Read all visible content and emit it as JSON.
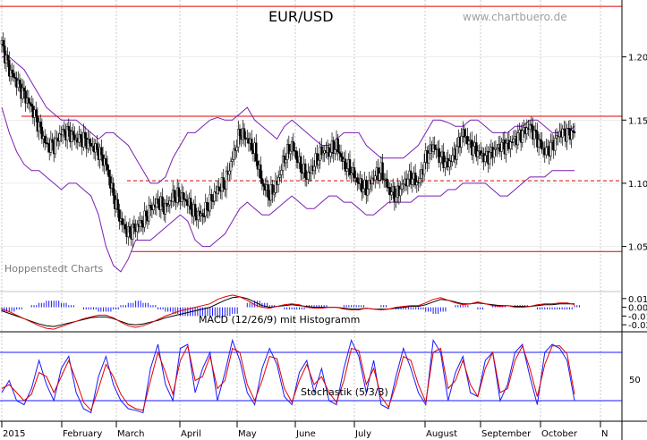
{
  "title": "EUR/USD",
  "source": "www.chartbuero.de",
  "watermark": "Hoppenstedt Charts",
  "colors": {
    "background": "#ffffff",
    "grid": "#bdbdbd",
    "candle": "#000000",
    "bollinger": "#7a1fb0",
    "level_line": "#e00000",
    "macd_line": "#000000",
    "macd_signal": "#e00000",
    "histogram": "#1a1aff",
    "stoch_k": "#1a1aff",
    "stoch_d": "#e00000",
    "stoch_band": "#1a1aff"
  },
  "chart_data": [
    {
      "type": "candlestick",
      "title": "EUR/USD",
      "y_ticks": [
        "1.20",
        "1.15",
        "1.10",
        "1.05"
      ],
      "ylim": [
        1.02,
        1.245
      ],
      "x_labels": [
        "2015",
        "February",
        "March",
        "April",
        "May",
        "June",
        "July",
        "August",
        "September",
        "October",
        "N"
      ],
      "horizontal_lines": [
        {
          "value": 1.24,
          "style": "solid"
        },
        {
          "value": 1.153,
          "style": "solid"
        },
        {
          "value": 1.102,
          "style": "dashed"
        },
        {
          "value": 1.046,
          "style": "solid"
        }
      ],
      "close_series": [
        1.21,
        1.19,
        1.18,
        1.17,
        1.16,
        1.145,
        1.13,
        1.13,
        1.14,
        1.14,
        1.135,
        1.135,
        1.13,
        1.125,
        1.115,
        1.09,
        1.07,
        1.06,
        1.065,
        1.07,
        1.08,
        1.085,
        1.08,
        1.09,
        1.09,
        1.085,
        1.075,
        1.075,
        1.085,
        1.095,
        1.1,
        1.12,
        1.14,
        1.135,
        1.125,
        1.1,
        1.09,
        1.1,
        1.12,
        1.13,
        1.115,
        1.105,
        1.115,
        1.125,
        1.125,
        1.13,
        1.115,
        1.11,
        1.1,
        1.095,
        1.105,
        1.11,
        1.095,
        1.09,
        1.1,
        1.105,
        1.1,
        1.12,
        1.13,
        1.12,
        1.115,
        1.125,
        1.14,
        1.13,
        1.125,
        1.12,
        1.125,
        1.13,
        1.13,
        1.135,
        1.14,
        1.145,
        1.135,
        1.125,
        1.13,
        1.14,
        1.14,
        1.14
      ],
      "series": [
        {
          "name": "upper_band",
          "values": [
            1.2,
            1.2,
            1.195,
            1.19,
            1.18,
            1.17,
            1.16,
            1.155,
            1.15,
            1.15,
            1.15,
            1.145,
            1.14,
            1.135,
            1.14,
            1.14,
            1.135,
            1.13,
            1.12,
            1.11,
            1.1,
            1.1,
            1.105,
            1.12,
            1.13,
            1.14,
            1.14,
            1.145,
            1.15,
            1.152,
            1.15,
            1.15,
            1.155,
            1.16,
            1.15,
            1.145,
            1.14,
            1.135,
            1.145,
            1.15,
            1.145,
            1.14,
            1.135,
            1.13,
            1.13,
            1.135,
            1.14,
            1.14,
            1.14,
            1.13,
            1.125,
            1.12,
            1.12,
            1.12,
            1.12,
            1.125,
            1.13,
            1.14,
            1.15,
            1.15,
            1.148,
            1.145,
            1.145,
            1.15,
            1.15,
            1.145,
            1.14,
            1.14,
            1.14,
            1.145,
            1.145,
            1.15,
            1.15,
            1.145,
            1.14,
            1.14,
            1.14,
            1.145
          ]
        },
        {
          "name": "lower_band",
          "values": [
            1.16,
            1.14,
            1.125,
            1.115,
            1.11,
            1.11,
            1.105,
            1.1,
            1.095,
            1.1,
            1.1,
            1.095,
            1.09,
            1.075,
            1.05,
            1.035,
            1.03,
            1.04,
            1.055,
            1.055,
            1.055,
            1.06,
            1.065,
            1.07,
            1.075,
            1.07,
            1.055,
            1.05,
            1.05,
            1.055,
            1.06,
            1.07,
            1.08,
            1.085,
            1.08,
            1.075,
            1.075,
            1.08,
            1.085,
            1.09,
            1.085,
            1.08,
            1.08,
            1.085,
            1.09,
            1.09,
            1.085,
            1.085,
            1.08,
            1.075,
            1.075,
            1.08,
            1.085,
            1.085,
            1.085,
            1.085,
            1.09,
            1.09,
            1.09,
            1.09,
            1.095,
            1.095,
            1.1,
            1.1,
            1.1,
            1.1,
            1.095,
            1.09,
            1.09,
            1.095,
            1.1,
            1.105,
            1.105,
            1.105,
            1.11,
            1.11,
            1.11,
            1.11
          ]
        }
      ]
    },
    {
      "type": "line",
      "title": "MACD (12/26/9) mit Histogramm",
      "y_ticks": [
        "0.01",
        "0.00",
        "-0.01",
        "-0.02"
      ],
      "ylim": [
        -0.028,
        0.018
      ],
      "series": [
        {
          "name": "macd",
          "values": [
            -0.004,
            -0.007,
            -0.01,
            -0.013,
            -0.016,
            -0.019,
            -0.021,
            -0.022,
            -0.02,
            -0.018,
            -0.016,
            -0.014,
            -0.012,
            -0.011,
            -0.011,
            -0.013,
            -0.016,
            -0.019,
            -0.02,
            -0.019,
            -0.017,
            -0.015,
            -0.012,
            -0.01,
            -0.008,
            -0.006,
            -0.004,
            -0.002,
            0.0,
            0.004,
            0.008,
            0.011,
            0.012,
            0.01,
            0.006,
            0.002,
            0.0,
            0.001,
            0.002,
            0.003,
            0.002,
            0.001,
            0.0,
            0.0,
            0.0,
            0.0,
            -0.001,
            -0.002,
            -0.002,
            -0.001,
            -0.002,
            -0.002,
            -0.002,
            -0.001,
            0.0,
            0.001,
            0.001,
            0.003,
            0.006,
            0.009,
            0.008,
            0.006,
            0.004,
            0.004,
            0.005,
            0.004,
            0.003,
            0.002,
            0.002,
            0.001,
            0.001,
            0.001,
            0.002,
            0.003,
            0.003,
            0.004,
            0.004,
            0.004
          ]
        },
        {
          "name": "signal",
          "values": [
            -0.002,
            -0.005,
            -0.009,
            -0.013,
            -0.017,
            -0.021,
            -0.024,
            -0.025,
            -0.022,
            -0.019,
            -0.016,
            -0.013,
            -0.011,
            -0.009,
            -0.009,
            -0.012,
            -0.017,
            -0.021,
            -0.023,
            -0.021,
            -0.018,
            -0.014,
            -0.01,
            -0.007,
            -0.004,
            -0.002,
            0.0,
            0.002,
            0.004,
            0.009,
            0.012,
            0.014,
            0.012,
            0.008,
            0.003,
            0.0,
            -0.001,
            0.001,
            0.003,
            0.004,
            0.003,
            0.0,
            -0.001,
            -0.001,
            0.0,
            0.0,
            -0.002,
            -0.003,
            -0.003,
            -0.001,
            -0.002,
            -0.003,
            -0.002,
            0.0,
            0.001,
            0.002,
            0.002,
            0.005,
            0.009,
            0.011,
            0.008,
            0.005,
            0.003,
            0.004,
            0.006,
            0.004,
            0.002,
            0.001,
            0.002,
            0.0,
            0.0,
            0.001,
            0.003,
            0.004,
            0.004,
            0.005,
            0.005,
            0.003
          ]
        }
      ]
    },
    {
      "type": "line",
      "title": "Stochastik (5/3/3)",
      "y_ticks": [
        "50"
      ],
      "ylim": [
        0,
        100
      ],
      "bands": [
        80,
        20
      ],
      "series": [
        {
          "name": "%K",
          "values": [
            30,
            45,
            20,
            15,
            35,
            70,
            40,
            20,
            60,
            75,
            30,
            10,
            5,
            50,
            75,
            40,
            20,
            10,
            8,
            5,
            60,
            90,
            40,
            20,
            85,
            90,
            30,
            60,
            80,
            20,
            55,
            95,
            70,
            30,
            15,
            60,
            85,
            65,
            25,
            15,
            55,
            70,
            30,
            60,
            20,
            15,
            60,
            95,
            75,
            30,
            70,
            15,
            10,
            50,
            85,
            60,
            30,
            15,
            95,
            80,
            20,
            55,
            75,
            30,
            25,
            70,
            80,
            20,
            40,
            80,
            90,
            50,
            15,
            80,
            90,
            85,
            70,
            20
          ]
        },
        {
          "name": "%D",
          "values": [
            35,
            40,
            30,
            20,
            28,
            55,
            50,
            30,
            50,
            70,
            45,
            18,
            8,
            35,
            65,
            50,
            28,
            15,
            10,
            8,
            45,
            80,
            55,
            28,
            70,
            88,
            45,
            50,
            75,
            35,
            45,
            85,
            80,
            40,
            20,
            45,
            75,
            72,
            35,
            18,
            45,
            65,
            40,
            50,
            30,
            18,
            45,
            85,
            82,
            40,
            60,
            25,
            12,
            40,
            75,
            70,
            40,
            18,
            80,
            85,
            35,
            45,
            70,
            40,
            25,
            60,
            80,
            30,
            35,
            70,
            88,
            60,
            25,
            65,
            88,
            88,
            78,
            28
          ]
        }
      ]
    }
  ]
}
